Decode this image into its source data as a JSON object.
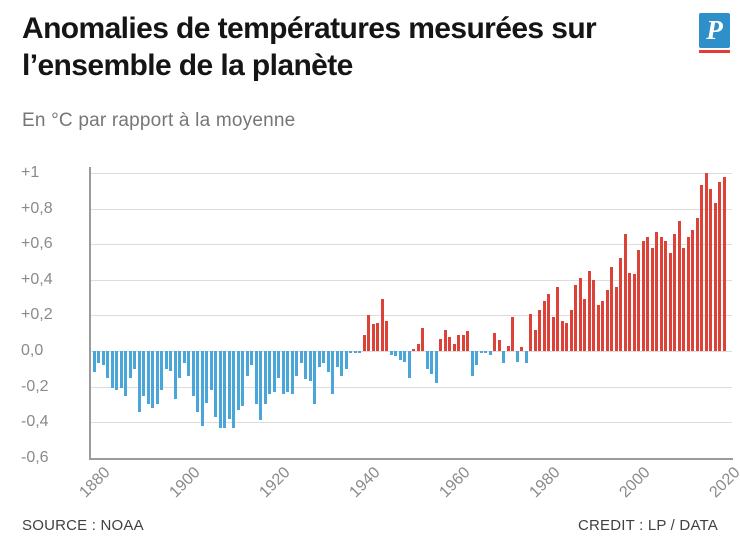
{
  "header": {
    "title_line1": "Anomalies de températures mesurées sur",
    "title_line2": "l’ensemble de la planète",
    "subtitle": "En °C par rapport à la moyenne",
    "logo_letter": "P",
    "logo_color": "#2e8fc9",
    "logo_underline_color": "#e23c38"
  },
  "footer": {
    "source": "SOURCE : NOAA",
    "credit": "CREDIT : LP / DATA"
  },
  "chart_data": {
    "type": "bar",
    "title": "Anomalies de températures mesurées sur l’ensemble de la planète",
    "ylabel": "En °C par rapport à la moyenne",
    "source": "NOAA",
    "grid": true,
    "ylim": [
      -0.6,
      1.05
    ],
    "bar_colors": {
      "positive": "#dc4238",
      "negative": "#4aa5d9"
    },
    "y_ticks": [
      {
        "label": "+1",
        "value": 1.0
      },
      {
        "label": "+0,8",
        "value": 0.8
      },
      {
        "label": "+0,6",
        "value": 0.6
      },
      {
        "label": "+0,4",
        "value": 0.4
      },
      {
        "label": "+0,2",
        "value": 0.2
      },
      {
        "label": "0,0",
        "value": 0.0
      },
      {
        "label": "-0,2",
        "value": -0.2
      },
      {
        "label": "-0,4",
        "value": -0.4
      },
      {
        "label": "-0,6",
        "value": -0.6
      }
    ],
    "x_ticks": [
      {
        "label": "1880",
        "year": 1880
      },
      {
        "label": "1900",
        "year": 1900
      },
      {
        "label": "1920",
        "year": 1920
      },
      {
        "label": "1940",
        "year": 1940
      },
      {
        "label": "1960",
        "year": 1960
      },
      {
        "label": "1980",
        "year": 1980
      },
      {
        "label": "2000",
        "year": 2000
      },
      {
        "label": "2020",
        "year": 2020
      }
    ],
    "years": [
      1880,
      1881,
      1882,
      1883,
      1884,
      1885,
      1886,
      1887,
      1888,
      1889,
      1890,
      1891,
      1892,
      1893,
      1894,
      1895,
      1896,
      1897,
      1898,
      1899,
      1900,
      1901,
      1902,
      1903,
      1904,
      1905,
      1906,
      1907,
      1908,
      1909,
      1910,
      1911,
      1912,
      1913,
      1914,
      1915,
      1916,
      1917,
      1918,
      1919,
      1920,
      1921,
      1922,
      1923,
      1924,
      1925,
      1926,
      1927,
      1928,
      1929,
      1930,
      1931,
      1932,
      1933,
      1934,
      1935,
      1936,
      1937,
      1938,
      1939,
      1940,
      1941,
      1942,
      1943,
      1944,
      1945,
      1946,
      1947,
      1948,
      1949,
      1950,
      1951,
      1952,
      1953,
      1954,
      1955,
      1956,
      1957,
      1958,
      1959,
      1960,
      1961,
      1962,
      1963,
      1964,
      1965,
      1966,
      1967,
      1968,
      1969,
      1970,
      1971,
      1972,
      1973,
      1974,
      1975,
      1976,
      1977,
      1978,
      1979,
      1980,
      1981,
      1982,
      1983,
      1984,
      1985,
      1986,
      1987,
      1988,
      1989,
      1990,
      1991,
      1992,
      1993,
      1994,
      1995,
      1996,
      1997,
      1998,
      1999,
      2000,
      2001,
      2002,
      2003,
      2004,
      2005,
      2006,
      2007,
      2008,
      2009,
      2010,
      2011,
      2012,
      2013,
      2014,
      2015,
      2016,
      2017,
      2018,
      2019,
      2020
    ],
    "values": [
      -0.12,
      -0.07,
      -0.08,
      -0.15,
      -0.21,
      -0.22,
      -0.21,
      -0.25,
      -0.15,
      -0.1,
      -0.34,
      -0.25,
      -0.3,
      -0.32,
      -0.3,
      -0.22,
      -0.1,
      -0.11,
      -0.27,
      -0.15,
      -0.07,
      -0.14,
      -0.25,
      -0.34,
      -0.42,
      -0.29,
      -0.22,
      -0.37,
      -0.43,
      -0.43,
      -0.38,
      -0.43,
      -0.33,
      -0.31,
      -0.14,
      -0.08,
      -0.3,
      -0.39,
      -0.3,
      -0.24,
      -0.23,
      -0.15,
      -0.24,
      -0.23,
      -0.24,
      -0.14,
      -0.07,
      -0.16,
      -0.17,
      -0.3,
      -0.09,
      -0.07,
      -0.12,
      -0.24,
      -0.09,
      -0.14,
      -0.1,
      -0.01,
      -0.01,
      -0.01,
      0.09,
      0.2,
      0.15,
      0.16,
      0.29,
      0.17,
      -0.02,
      -0.03,
      -0.05,
      -0.06,
      -0.15,
      0.01,
      0.04,
      0.13,
      -0.1,
      -0.13,
      -0.18,
      0.07,
      0.12,
      0.08,
      0.04,
      0.09,
      0.09,
      0.11,
      -0.14,
      -0.08,
      -0.01,
      -0.01,
      -0.02,
      0.1,
      0.06,
      -0.07,
      0.03,
      0.19,
      -0.06,
      0.02,
      -0.07,
      0.21,
      0.12,
      0.23,
      0.28,
      0.32,
      0.19,
      0.36,
      0.17,
      0.16,
      0.23,
      0.37,
      0.41,
      0.29,
      0.45,
      0.4,
      0.26,
      0.28,
      0.34,
      0.47,
      0.36,
      0.52,
      0.66,
      0.44,
      0.43,
      0.57,
      0.62,
      0.64,
      0.58,
      0.67,
      0.64,
      0.62,
      0.55,
      0.66,
      0.73,
      0.58,
      0.64,
      0.68,
      0.75,
      0.93,
      1.0,
      0.91,
      0.83,
      0.95,
      0.98
    ]
  }
}
